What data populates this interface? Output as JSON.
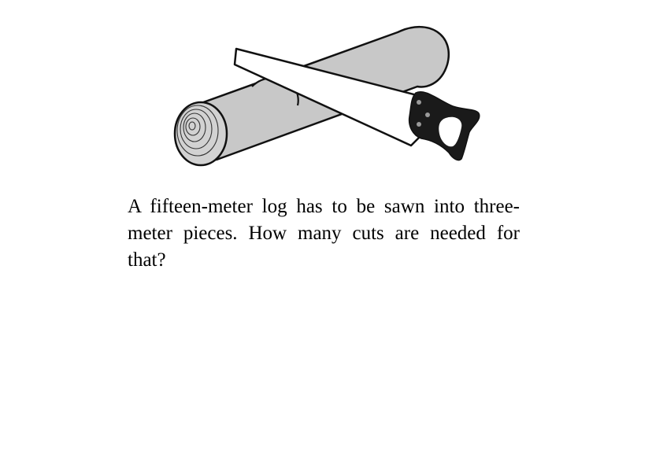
{
  "problem": {
    "text": "A fifteen-meter log has to be sawn into three-meter pieces. How many cuts are needed for that?"
  },
  "illustration": {
    "icons": [
      "log-icon",
      "saw-icon"
    ],
    "colors": {
      "outline": "#111111",
      "log_fill": "#c8c8c8",
      "blade_fill": "#ffffff",
      "handle_fill": "#1a1a1a"
    }
  }
}
